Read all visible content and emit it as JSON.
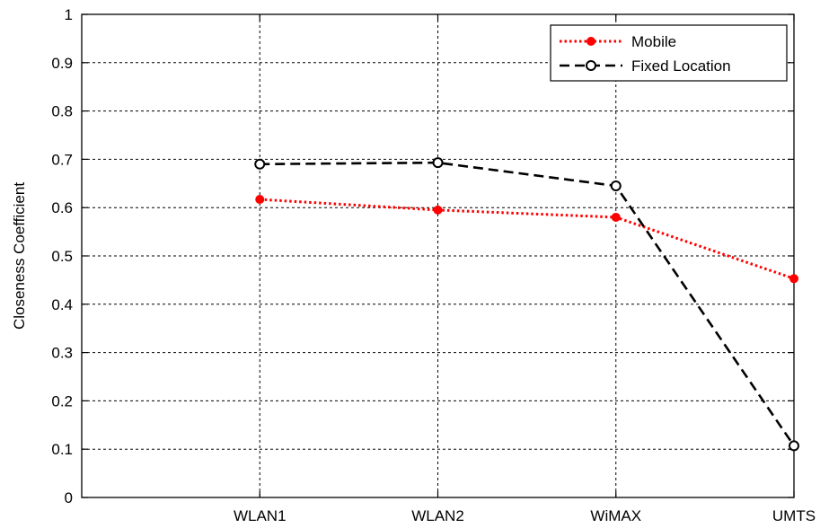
{
  "chart_data": {
    "type": "line",
    "title": "",
    "xlabel": "",
    "ylabel": "Closeness Coefficient",
    "categories": [
      "WLAN1",
      "WLAN2",
      "WiMAX",
      "UMTS"
    ],
    "x_range": [
      0,
      4
    ],
    "ylim": [
      0,
      1
    ],
    "yticks": [
      0,
      0.1,
      0.2,
      0.3,
      0.4,
      0.5,
      0.6,
      0.7,
      0.8,
      0.9,
      1
    ],
    "ytick_labels": [
      "0",
      "0.1",
      "0.2",
      "0.3",
      "0.4",
      "0.5",
      "0.6",
      "0.7",
      "0.8",
      "0.9",
      "1"
    ],
    "grid": true,
    "legend_position": "top-right",
    "series": [
      {
        "name": "Mobile",
        "values": [
          0.617,
          0.595,
          0.58,
          0.453
        ],
        "color": "#ff0000",
        "line_style": "dotted",
        "marker": "filled-circle"
      },
      {
        "name": "Fixed Location",
        "values": [
          0.69,
          0.693,
          0.645,
          0.107
        ],
        "color": "#000000",
        "line_style": "dashed",
        "marker": "open-circle"
      }
    ]
  }
}
